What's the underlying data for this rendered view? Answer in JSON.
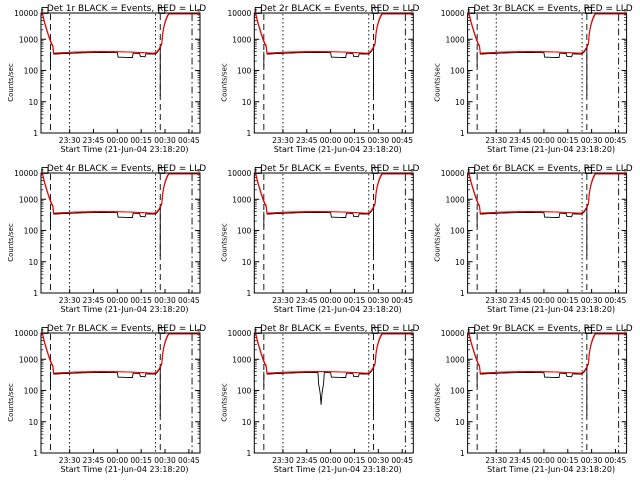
{
  "colors": {
    "events": "#000000",
    "lld": "#ff0000",
    "background": "#ffffff"
  },
  "chart_data": [
    {
      "type": "line",
      "title": "Det 1r BLACK = Events, RED = LLD",
      "xlabel": "Start Time (21-Jun-04 23:18:20)",
      "ylabel": "Counts/sec",
      "xticks": [
        "23:30",
        "23:45",
        "00:00",
        "00:15",
        "00:30",
        "00:45"
      ],
      "yticks": [
        "1",
        "10",
        "100",
        "1000",
        "10000"
      ],
      "ylim": [
        1,
        10000
      ],
      "yscale": "log",
      "dip": "none",
      "series": [
        {
          "values": []
        },
        {
          "values": []
        }
      ]
    },
    {
      "type": "line",
      "title": "Det 2r BLACK = Events, RED = LLD",
      "xlabel": "Start Time (21-Jun-04 23:18:20)",
      "ylabel": "Counts/sec",
      "xticks": [
        "23:30",
        "23:45",
        "00:00",
        "00:15",
        "00:30",
        "00:45"
      ],
      "yticks": [
        "1",
        "10",
        "100",
        "1000",
        "10000"
      ],
      "ylim": [
        1,
        10000
      ],
      "yscale": "log",
      "dip": "none",
      "series": [
        {
          "values": []
        },
        {
          "values": []
        }
      ]
    },
    {
      "type": "line",
      "title": "Det 3r BLACK = Events, RED = LLD",
      "xlabel": "Start Time (21-Jun-04 23:18:20)",
      "ylabel": "Counts/sec",
      "xticks": [
        "23:30",
        "23:45",
        "00:00",
        "00:15",
        "00:30",
        "00:45"
      ],
      "yticks": [
        "1",
        "10",
        "100",
        "1000",
        "10000"
      ],
      "ylim": [
        1,
        10000
      ],
      "yscale": "log",
      "dip": "none",
      "series": [
        {
          "values": []
        },
        {
          "values": []
        }
      ]
    },
    {
      "type": "line",
      "title": "Det 4r BLACK = Events, RED = LLD",
      "xlabel": "Start Time (21-Jun-04 23:18:20)",
      "ylabel": "Counts/sec",
      "xticks": [
        "23:30",
        "23:45",
        "00:00",
        "00:15",
        "00:30",
        "00:45"
      ],
      "yticks": [
        "1",
        "10",
        "100",
        "1000",
        "10000"
      ],
      "ylim": [
        1,
        10000
      ],
      "yscale": "log",
      "dip": "none",
      "series": [
        {
          "values": []
        },
        {
          "values": []
        }
      ]
    },
    {
      "type": "line",
      "title": "Det 5r BLACK = Events, RED = LLD",
      "xlabel": "Start Time (21-Jun-04 23:18:20)",
      "ylabel": "Counts/sec",
      "xticks": [
        "23:30",
        "23:45",
        "00:00",
        "00:15",
        "00:30",
        "00:45"
      ],
      "yticks": [
        "1",
        "10",
        "100",
        "1000",
        "10000"
      ],
      "ylim": [
        1,
        10000
      ],
      "yscale": "log",
      "dip": "none",
      "series": [
        {
          "values": []
        },
        {
          "values": []
        }
      ]
    },
    {
      "type": "line",
      "title": "Det 6r BLACK = Events, RED = LLD",
      "xlabel": "Start Time (21-Jun-04 23:18:20)",
      "ylabel": "Counts/sec",
      "xticks": [
        "23:30",
        "23:45",
        "00:00",
        "00:15",
        "00:30",
        "00:45"
      ],
      "yticks": [
        "1",
        "10",
        "100",
        "1000",
        "10000"
      ],
      "ylim": [
        1,
        10000
      ],
      "yscale": "log",
      "dip": "none",
      "series": [
        {
          "values": []
        },
        {
          "values": []
        }
      ]
    },
    {
      "type": "line",
      "title": "Det 7r BLACK = Events, RED = LLD",
      "xlabel": "Start Time (21-Jun-04 23:18:20)",
      "ylabel": "Counts/sec",
      "xticks": [
        "23:30",
        "23:45",
        "00:00",
        "00:15",
        "00:30",
        "00:45"
      ],
      "yticks": [
        "1",
        "10",
        "100",
        "1000",
        "10000"
      ],
      "ylim": [
        1,
        10000
      ],
      "yscale": "log",
      "dip": "none",
      "series": [
        {
          "values": []
        },
        {
          "values": []
        }
      ]
    },
    {
      "type": "line",
      "title": "Det 8r BLACK = Events, RED = LLD",
      "xlabel": "Start Time (21-Jun-04 23:18:20)",
      "ylabel": "Counts/sec",
      "xticks": [
        "23:30",
        "23:45",
        "00:00",
        "00:15",
        "00:30",
        "00:45"
      ],
      "yticks": [
        "1",
        "10",
        "100",
        "1000",
        "10000"
      ],
      "ylim": [
        1,
        10000
      ],
      "yscale": "log",
      "dip": "deep",
      "series": [
        {
          "values": []
        },
        {
          "values": []
        }
      ]
    },
    {
      "type": "line",
      "title": "Det 9r BLACK = Events, RED = LLD",
      "xlabel": "Start Time (21-Jun-04 23:18:20)",
      "ylabel": "Counts/sec",
      "xticks": [
        "23:30",
        "23:45",
        "00:00",
        "00:15",
        "00:30",
        "00:45"
      ],
      "yticks": [
        "1",
        "10",
        "100",
        "1000",
        "10000"
      ],
      "ylim": [
        1,
        10000
      ],
      "yscale": "log",
      "dip": "none",
      "series": [
        {
          "values": []
        },
        {
          "values": []
        }
      ]
    }
  ]
}
